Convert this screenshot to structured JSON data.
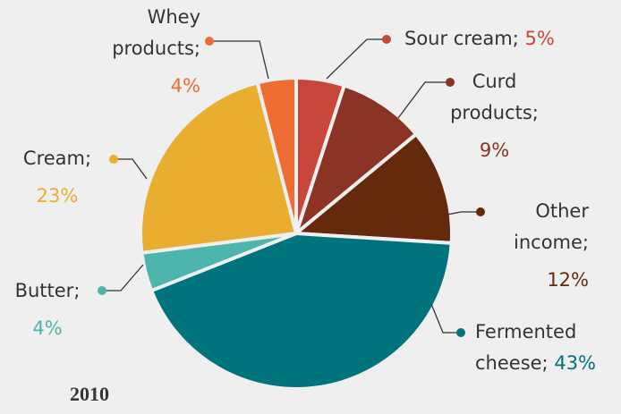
{
  "chart_data": {
    "type": "pie",
    "title": "2010",
    "categories": [
      "Sour cream;",
      "Curd products;",
      "Other income;",
      "Fermented cheese;",
      "Butter;",
      "Cream;",
      "Whey products;"
    ],
    "values": [
      5,
      9,
      12,
      43,
      4,
      23,
      4
    ],
    "value_labels": [
      "5%",
      "9%",
      "12%",
      "43%",
      "4%",
      "23%",
      "4%"
    ],
    "colors": [
      "#c9473a",
      "#8b3324",
      "#652a0c",
      "#00747c",
      "#4db6ac",
      "#e9ae2f",
      "#ef6c33"
    ]
  }
}
